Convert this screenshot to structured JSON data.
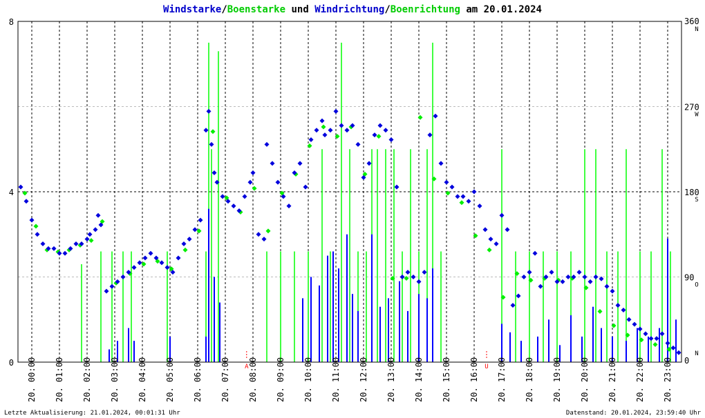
{
  "title_parts": {
    "wind_speed": "Windstarke",
    "sep1": "/",
    "gust_speed": "Boenstarke",
    "and": " und ",
    "wind_direction": "Windrichtung",
    "sep2": "/",
    "gust_direction": "Boenrichtung",
    "date_prefix": " am ",
    "date": "20.01.2024"
  },
  "footer": {
    "last_update": "Letzte Aktualisierung: 21.01.2024, 00:01:31 Uhr",
    "data_state": "Datenstand: 20.01.2024, 23:59:40 Uhr"
  },
  "colors": {
    "speed": "#0000ff",
    "gust": "#00ff00",
    "direction_marker": "#0000dd",
    "gust_marker": "#00ee00",
    "grid": "#000000",
    "sun_marker": "#ff0000"
  },
  "markers": {
    "sunrise": "A",
    "sunset": "U",
    "sunrise_time": 8.27,
    "sunset_time": 16.95
  },
  "chart_data": {
    "type": "line",
    "title": "Windstarke/Boenstarke und Windrichtung/Boenrichtung am 20.01.2024",
    "x_range": [
      0,
      24
    ],
    "x_tick_labels": [
      "20. 00:00",
      "20. 01:00",
      "20. 02:00",
      "20. 03:00",
      "20. 04:00",
      "20. 05:00",
      "20. 06:00",
      "20. 07:00",
      "20. 08:00",
      "20. 09:00",
      "20. 10:00",
      "20. 11:00",
      "20. 12:00",
      "20. 13:00",
      "20. 14:00",
      "20. 15:00",
      "20. 16:00",
      "20. 17:00",
      "20. 18:00",
      "20. 19:00",
      "20. 20:00",
      "20. 21:00",
      "20. 22:00",
      "20. 23:00"
    ],
    "y_left": {
      "range": [
        0,
        8
      ],
      "ticks": [
        "0",
        "4",
        "8"
      ]
    },
    "y_right": {
      "range": [
        0,
        360
      ],
      "ticks": [
        {
          "value": 0,
          "label": "0",
          "compass": "N"
        },
        {
          "value": 90,
          "label": "90",
          "compass": "O"
        },
        {
          "value": 180,
          "label": "180",
          "compass": "S"
        },
        {
          "value": 270,
          "label": "270",
          "compass": "W"
        },
        {
          "value": 360,
          "label": "360",
          "compass": "N"
        }
      ]
    },
    "grid": true,
    "series": [
      {
        "name": "Windstarke",
        "kind": "bars",
        "x": [
          3.3,
          3.6,
          4.0,
          4.2,
          5.5,
          6.8,
          6.9,
          7.1,
          7.3,
          10.3,
          10.6,
          10.9,
          11.2,
          11.4,
          11.6,
          11.9,
          12.1,
          12.3,
          12.8,
          13.1,
          13.4,
          13.8,
          14.1,
          14.5,
          14.8,
          15.0,
          17.5,
          17.8,
          18.2,
          18.8,
          19.2,
          19.6,
          20.0,
          20.4,
          20.8,
          21.1,
          21.5,
          22.0,
          22.4,
          22.8,
          23.2,
          23.5,
          23.8
        ],
        "y": [
          0.3,
          0.5,
          0.8,
          0.5,
          0.6,
          0.6,
          3.6,
          2.0,
          1.4,
          1.5,
          2.0,
          1.8,
          2.5,
          2.6,
          2.2,
          3.0,
          1.6,
          1.2,
          3.0,
          1.3,
          1.5,
          1.9,
          1.2,
          1.6,
          1.5,
          2.2,
          0.9,
          0.7,
          0.5,
          0.6,
          1.0,
          0.4,
          1.1,
          0.6,
          1.3,
          0.8,
          0.6,
          0.5,
          0.8,
          0.6,
          0.8,
          2.9,
          1.0
        ]
      },
      {
        "name": "Boenstarke",
        "kind": "bars",
        "x": [
          2.3,
          3.0,
          3.4,
          3.8,
          4.1,
          5.4,
          6.8,
          6.9,
          7.0,
          7.25,
          9.0,
          9.5,
          10.0,
          10.5,
          11.0,
          11.3,
          11.7,
          12.0,
          12.3,
          12.6,
          12.8,
          13.0,
          13.3,
          13.6,
          13.9,
          14.2,
          14.5,
          14.8,
          15.0,
          15.3,
          17.5,
          18.0,
          18.5,
          19.0,
          19.5,
          20.0,
          20.5,
          20.9,
          21.3,
          21.7,
          22.0,
          22.5,
          22.9,
          23.3,
          23.6
        ],
        "y": [
          2.3,
          2.6,
          2.6,
          2.6,
          2.6,
          2.6,
          2.6,
          7.5,
          5.0,
          7.3,
          2.6,
          2.6,
          2.6,
          2.6,
          5.0,
          2.6,
          7.5,
          5.0,
          2.6,
          2.6,
          5.0,
          5.0,
          5.0,
          5.0,
          2.6,
          5.0,
          2.6,
          5.0,
          7.5,
          2.6,
          5.0,
          2.6,
          2.6,
          2.6,
          2.6,
          2.6,
          5.0,
          5.0,
          2.6,
          2.6,
          5.0,
          2.6,
          2.6,
          5.0,
          2.6
        ]
      },
      {
        "name": "Windrichtung",
        "kind": "markers",
        "x": [
          0.1,
          0.3,
          0.5,
          0.7,
          0.9,
          1.1,
          1.3,
          1.5,
          1.7,
          1.9,
          2.1,
          2.3,
          2.5,
          2.6,
          2.8,
          2.9,
          3.0,
          3.2,
          3.4,
          3.6,
          3.8,
          4.0,
          4.2,
          4.4,
          4.6,
          4.8,
          5.0,
          5.2,
          5.4,
          5.6,
          5.8,
          6.0,
          6.2,
          6.4,
          6.6,
          6.8,
          6.9,
          7.0,
          7.1,
          7.2,
          7.4,
          7.6,
          7.8,
          8.0,
          8.2,
          8.4,
          8.5,
          8.7,
          8.9,
          9.0,
          9.2,
          9.4,
          9.6,
          9.8,
          10.0,
          10.2,
          10.4,
          10.6,
          10.8,
          11.0,
          11.1,
          11.3,
          11.5,
          11.7,
          11.9,
          12.1,
          12.3,
          12.5,
          12.7,
          12.9,
          13.1,
          13.3,
          13.5,
          13.7,
          13.9,
          14.1,
          14.3,
          14.5,
          14.7,
          14.9,
          15.1,
          15.3,
          15.5,
          15.7,
          15.9,
          16.1,
          16.3,
          16.5,
          16.7,
          16.9,
          17.1,
          17.3,
          17.5,
          17.7,
          17.9,
          18.1,
          18.3,
          18.5,
          18.7,
          18.9,
          19.1,
          19.3,
          19.5,
          19.7,
          19.9,
          20.1,
          20.3,
          20.5,
          20.7,
          20.9,
          21.1,
          21.3,
          21.5,
          21.7,
          21.9,
          22.1,
          22.3,
          22.5,
          22.7,
          22.9,
          23.1,
          23.3,
          23.5,
          23.7,
          23.9
        ],
        "y": [
          185,
          170,
          150,
          135,
          125,
          120,
          120,
          115,
          115,
          120,
          125,
          125,
          130,
          135,
          140,
          155,
          145,
          75,
          80,
          85,
          90,
          95,
          100,
          105,
          110,
          115,
          110,
          105,
          100,
          95,
          110,
          125,
          130,
          140,
          150,
          245,
          265,
          230,
          200,
          190,
          175,
          170,
          165,
          160,
          175,
          190,
          200,
          135,
          130,
          230,
          210,
          190,
          175,
          165,
          200,
          210,
          185,
          235,
          245,
          255,
          240,
          245,
          265,
          250,
          245,
          250,
          230,
          195,
          210,
          240,
          250,
          245,
          235,
          185,
          90,
          95,
          90,
          85,
          95,
          240,
          260,
          210,
          190,
          185,
          175,
          175,
          170,
          180,
          165,
          140,
          130,
          125,
          155,
          140,
          60,
          70,
          90,
          95,
          115,
          80,
          90,
          95,
          85,
          85,
          90,
          90,
          95,
          90,
          85,
          90,
          88,
          80,
          75,
          60,
          55,
          45,
          40,
          35,
          30,
          25,
          25,
          30,
          20,
          15,
          10
        ]
      },
      {
        "name": "Boenrichtung",
        "kind": "markers",
        "x": [
          0.2,
          0.6,
          1.0,
          1.4,
          1.8,
          2.2,
          2.6,
          3.0,
          3.5,
          4.0,
          4.5,
          5.0,
          5.5,
          6.0,
          6.5,
          7.0,
          7.5,
          8.0,
          8.5,
          9.0,
          9.5,
          10.0,
          10.5,
          11.0,
          11.5,
          12.0,
          12.5,
          13.0,
          13.5,
          14.0,
          14.5,
          15.0,
          15.5,
          16.0,
          16.5,
          17.0,
          17.5,
          18.0,
          18.5,
          19.0,
          19.5,
          20.0,
          20.5,
          21.0,
          21.5,
          22.0,
          22.5,
          23.0,
          23.5
        ],
        "y": [
          180,
          145,
          120,
          118,
          120,
          125,
          130,
          150,
          85,
          95,
          105,
          108,
          100,
          120,
          140,
          245,
          175,
          160,
          185,
          140,
          180,
          200,
          230,
          250,
          240,
          250,
          200,
          240,
          90,
          90,
          260,
          195,
          180,
          170,
          135,
          120,
          70,
          95,
          88,
          90,
          88,
          90,
          80,
          55,
          40,
          30,
          25,
          20,
          15
        ]
      }
    ]
  }
}
